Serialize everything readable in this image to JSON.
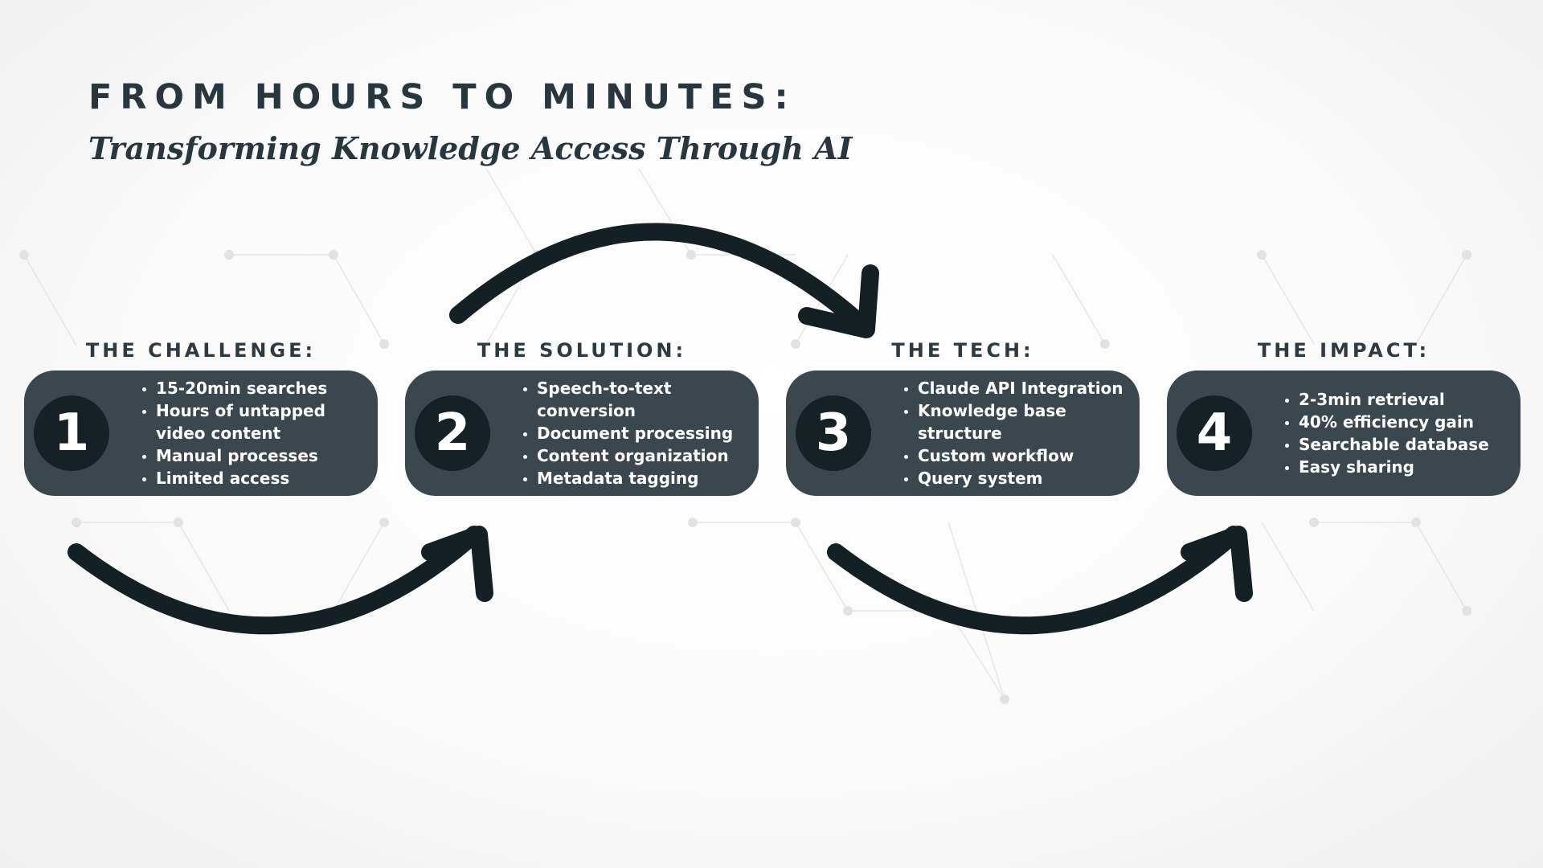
{
  "header": {
    "title": "FROM HOURS TO MINUTES:",
    "subtitle": "Transforming Knowledge Access Through AI"
  },
  "steps": [
    {
      "number": "1",
      "heading": "THE CHALLENGE:",
      "items": [
        "15-20min searches",
        "Hours of untapped video content",
        "Manual processes",
        "Limited access"
      ]
    },
    {
      "number": "2",
      "heading": "THE SOLUTION:",
      "items": [
        "Speech-to-text conversion",
        "Document processing",
        "Content organization",
        "Metadata tagging"
      ]
    },
    {
      "number": "3",
      "heading": "THE TECH:",
      "items": [
        "Claude API Integration",
        "Knowledge base structure",
        "Custom workflow",
        "Query system"
      ]
    },
    {
      "number": "4",
      "heading": "THE IMPACT:",
      "items": [
        "2-3min retrieval",
        "40% efficiency gain",
        "Searchable database",
        "Easy sharing"
      ]
    }
  ],
  "colors": {
    "card": "#3b474d",
    "number_circle": "#172024",
    "arrow": "#142024",
    "text_dark": "#2a363d"
  },
  "icons": [
    "arrow-curved-down-right",
    "arrow-curved-up-right"
  ]
}
